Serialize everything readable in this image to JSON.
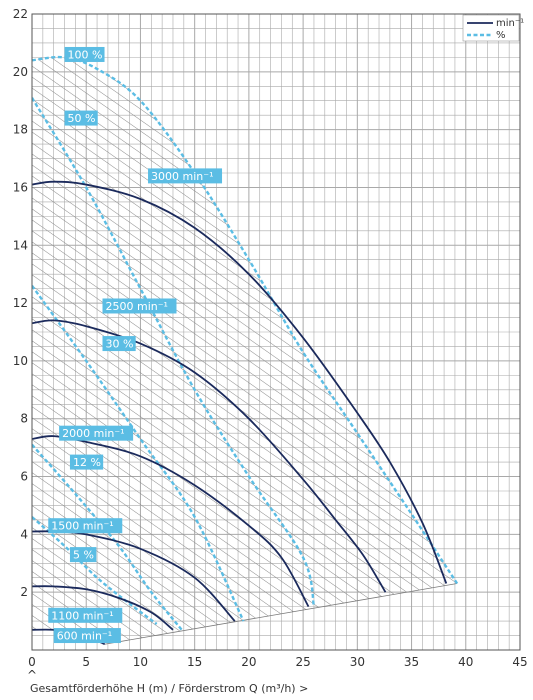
{
  "colors": {
    "speed": "#1b2a5c",
    "efficiency": "#5bbde4",
    "grid": "#a9a9a9",
    "hatch": "#8a8a8a",
    "label_bg": "#5bbde4",
    "axis_text": "#333333"
  },
  "chart_data": {
    "type": "line",
    "title": "",
    "xlabel": "Gesamtförderhöhe H (m) / Förderstrom Q (m³/h) >",
    "axis_mark": "^",
    "xlim": [
      0,
      45
    ],
    "ylim": [
      0,
      22
    ],
    "x_ticks": [
      0,
      5,
      10,
      15,
      20,
      25,
      30,
      35,
      40,
      45
    ],
    "y_ticks": [
      2,
      4,
      6,
      8,
      10,
      12,
      14,
      16,
      18,
      20,
      22
    ],
    "grid": true,
    "legend": {
      "placement": "top-right",
      "entries": [
        {
          "label": "min⁻¹",
          "style": "solid"
        },
        {
          "label": "%",
          "style": "dashed"
        }
      ]
    },
    "speed_curves": [
      {
        "label": "3000 min⁻¹",
        "points": [
          [
            0,
            16.1
          ],
          [
            2,
            16.2
          ],
          [
            5,
            16.1
          ],
          [
            10,
            15.6
          ],
          [
            15,
            14.6
          ],
          [
            20,
            13.0
          ],
          [
            25,
            10.8
          ],
          [
            30,
            8.2
          ],
          [
            33,
            6.5
          ],
          [
            36,
            4.4
          ],
          [
            38.2,
            2.3
          ]
        ]
      },
      {
        "label": "2500 min⁻¹",
        "points": [
          [
            0,
            11.3
          ],
          [
            2,
            11.4
          ],
          [
            5,
            11.2
          ],
          [
            10,
            10.6
          ],
          [
            15,
            9.6
          ],
          [
            20,
            8.0
          ],
          [
            25,
            5.9
          ],
          [
            28,
            4.5
          ],
          [
            30.5,
            3.3
          ],
          [
            32.6,
            2.0
          ]
        ]
      },
      {
        "label": "2000 min⁻¹",
        "points": [
          [
            0,
            7.3
          ],
          [
            2,
            7.4
          ],
          [
            5,
            7.2
          ],
          [
            10,
            6.7
          ],
          [
            15,
            5.7
          ],
          [
            20,
            4.3
          ],
          [
            23,
            3.2
          ],
          [
            25.5,
            1.5
          ]
        ]
      },
      {
        "label": "1500 min⁻¹",
        "points": [
          [
            0,
            4.1
          ],
          [
            2,
            4.1
          ],
          [
            5,
            4.0
          ],
          [
            10,
            3.5
          ],
          [
            15,
            2.5
          ],
          [
            18.7,
            1.0
          ]
        ]
      },
      {
        "label": "1100 min⁻¹",
        "points": [
          [
            0,
            2.2
          ],
          [
            2,
            2.2
          ],
          [
            5,
            2.1
          ],
          [
            8,
            1.8
          ],
          [
            11,
            1.3
          ],
          [
            13,
            0.7
          ]
        ]
      },
      {
        "label": "600 min⁻¹",
        "points": [
          [
            0,
            0.7
          ],
          [
            2,
            0.7
          ],
          [
            4,
            0.6
          ],
          [
            5.5,
            0.4
          ],
          [
            6.7,
            0.2
          ]
        ]
      }
    ],
    "efficiency_curves": [
      {
        "label": "100 %",
        "points": [
          [
            0,
            20.4
          ],
          [
            3,
            20.5
          ],
          [
            6,
            20.1
          ],
          [
            10,
            19.0
          ],
          [
            15,
            16.5
          ],
          [
            20,
            13.5
          ],
          [
            25,
            10.3
          ],
          [
            30,
            7.5
          ],
          [
            35,
            4.7
          ],
          [
            39.2,
            2.3
          ]
        ]
      },
      {
        "label": "50 %",
        "points": [
          [
            0,
            19.1
          ],
          [
            5,
            16.0
          ],
          [
            10,
            12.5
          ],
          [
            15,
            9.0
          ],
          [
            20,
            6.0
          ],
          [
            25,
            3.2
          ],
          [
            26,
            1.5
          ]
        ]
      },
      {
        "label": "30 %",
        "points": [
          [
            0,
            12.6
          ],
          [
            5,
            10.0
          ],
          [
            10,
            7.3
          ],
          [
            15,
            4.6
          ],
          [
            19.5,
            1.0
          ]
        ]
      },
      {
        "label": "12 %",
        "points": [
          [
            0,
            7.1
          ],
          [
            4,
            5.4
          ],
          [
            8,
            3.6
          ],
          [
            11,
            2.0
          ],
          [
            13.8,
            0.7
          ]
        ]
      },
      {
        "label": "5 %",
        "points": [
          [
            0,
            4.6
          ],
          [
            3,
            3.6
          ],
          [
            6,
            2.5
          ],
          [
            9,
            1.6
          ],
          [
            11.5,
            0.9
          ]
        ]
      }
    ],
    "operating_area": {
      "boundary": [
        [
          0,
          20.4
        ],
        [
          3,
          20.5
        ],
        [
          6,
          20.1
        ],
        [
          10,
          19.0
        ],
        [
          15,
          16.5
        ],
        [
          20,
          13.5
        ],
        [
          25,
          10.3
        ],
        [
          30,
          7.5
        ],
        [
          35,
          4.7
        ],
        [
          39.2,
          2.3
        ],
        [
          6.7,
          0.2
        ],
        [
          5.5,
          0.4
        ],
        [
          4,
          0.6
        ],
        [
          2,
          0.7
        ],
        [
          0,
          0.7
        ]
      ],
      "pattern": "hatched"
    },
    "labels": [
      {
        "text": "100 %",
        "x": 3.0,
        "y": 20.6
      },
      {
        "text": "50 %",
        "x": 3.0,
        "y": 18.4
      },
      {
        "text": "3000 min⁻¹",
        "x": 10.7,
        "y": 16.4
      },
      {
        "text": "2500 min⁻¹",
        "x": 6.5,
        "y": 11.9
      },
      {
        "text": "30 %",
        "x": 6.5,
        "y": 10.6
      },
      {
        "text": "2000 min⁻¹",
        "x": 2.5,
        "y": 7.5
      },
      {
        "text": "12 %",
        "x": 3.5,
        "y": 6.5
      },
      {
        "text": "1500 min⁻¹",
        "x": 1.5,
        "y": 4.3
      },
      {
        "text": "5 %",
        "x": 3.5,
        "y": 3.3
      },
      {
        "text": "1100 min⁻¹",
        "x": 1.5,
        "y": 1.2
      },
      {
        "text": "600 min⁻¹",
        "x": 2.0,
        "y": 0.5
      }
    ]
  }
}
